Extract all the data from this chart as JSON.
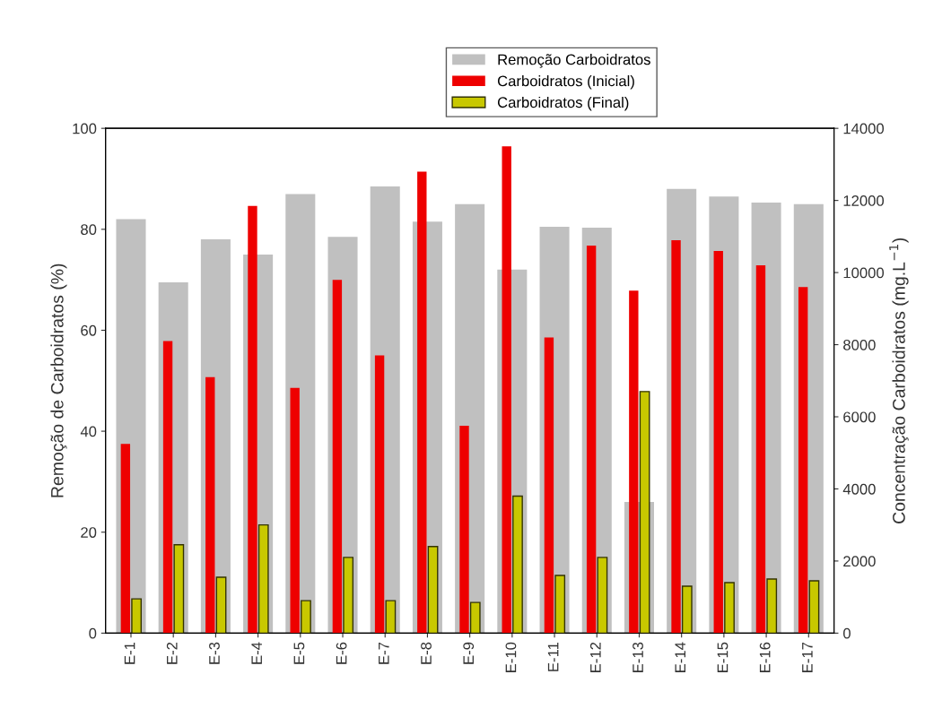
{
  "chart_data": {
    "type": "bar",
    "categories": [
      "E-1",
      "E-2",
      "E-3",
      "E-4",
      "E-5",
      "E-6",
      "E-7",
      "E-8",
      "E-9",
      "E-10",
      "E-11",
      "E-12",
      "E-13",
      "E-14",
      "E-15",
      "E-16",
      "E-17"
    ],
    "series": [
      {
        "name": "Remoção Carboidratos",
        "color": "#c0c0c0",
        "values": [
          82,
          69.5,
          78,
          75,
          87,
          78.5,
          88.5,
          81.5,
          85,
          72,
          80.5,
          80.3,
          26,
          88,
          86.5,
          85.3,
          85
        ]
      },
      {
        "name": "Carboidratos (Inicial)",
        "color": "#ee0000",
        "axis": "y2",
        "values": [
          5250,
          8100,
          7100,
          11850,
          6800,
          9800,
          7700,
          12800,
          5750,
          13500,
          8200,
          10750,
          9500,
          10900,
          10600,
          10200,
          9600
        ]
      },
      {
        "name": "Carboidratos (Final)",
        "color": "#c8c800",
        "axis": "y2",
        "values": [
          950,
          2450,
          1550,
          3000,
          900,
          2100,
          900,
          2400,
          850,
          3800,
          1600,
          2100,
          6700,
          1300,
          1400,
          1500,
          1450
        ]
      }
    ],
    "ylabel": "Remoção de Carboidratos (%)",
    "y2label": "Concentração Carboidratos (mg.L$^{−1}$)",
    "ylim": [
      0,
      100
    ],
    "yticks": [
      0,
      20,
      40,
      60,
      80,
      100
    ],
    "y2lim": [
      0,
      14000
    ],
    "y2ticks": [
      0,
      2000,
      4000,
      6000,
      8000,
      10000,
      12000,
      14000
    ],
    "legend": "top",
    "grid": false
  }
}
